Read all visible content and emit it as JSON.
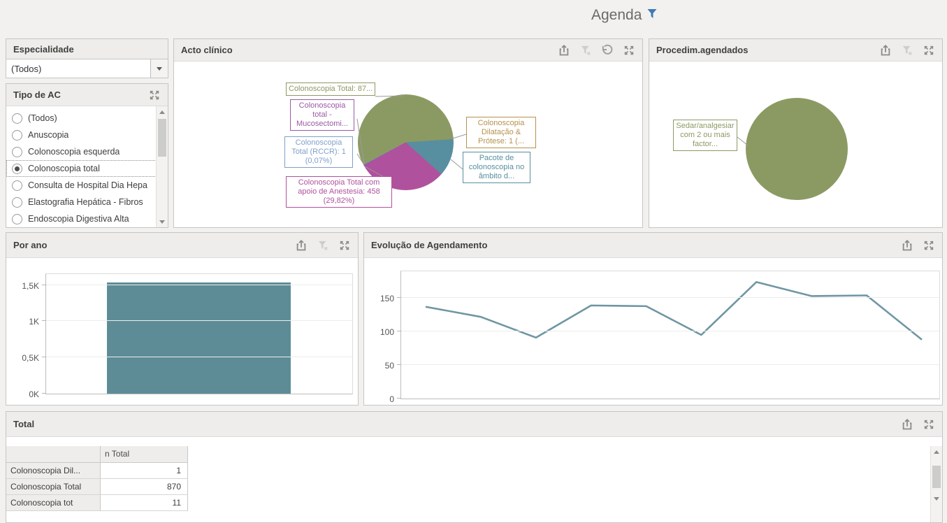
{
  "page": {
    "title": "Agenda"
  },
  "colors": {
    "accent_blue": "#3d7ab8",
    "pie_green": "#8b9a63",
    "pie_teal": "#578fa0",
    "pie_magenta": "#b0519d",
    "pie_tan": "#b5924c",
    "pie_purple": "#9b59a5",
    "pie_steel_blue": "#7f9fc9",
    "bar_teal": "#5e8c96",
    "line_teal": "#6f96a3"
  },
  "panels": {
    "especialidade": {
      "title": "Especialidade",
      "value": "(Todos)"
    },
    "tipo_ac": {
      "title": "Tipo de AC",
      "items": [
        {
          "label": "(Todos)",
          "selected": false
        },
        {
          "label": "Anuscopia",
          "selected": false
        },
        {
          "label": "Colonoscopia esquerda",
          "selected": false
        },
        {
          "label": "Colonoscopia total",
          "selected": true
        },
        {
          "label": "Consulta de Hospital Dia Hepa",
          "selected": false
        },
        {
          "label": "Elastografia Hepática - Fibros",
          "selected": false
        },
        {
          "label": "Endoscopia Digestiva Alta",
          "selected": false
        }
      ]
    },
    "acto": {
      "title": "Acto clínico"
    },
    "proc": {
      "title": "Procedim.agendados"
    },
    "porano": {
      "title": "Por ano"
    },
    "evolucao": {
      "title": "Evolução de Agendamento"
    },
    "total": {
      "title": "Total",
      "table": {
        "columns": [
          "",
          "n Total"
        ],
        "rows": [
          {
            "label": "Colonoscopia Dil...",
            "value": "1"
          },
          {
            "label": "Colonoscopia Total",
            "value": "870"
          },
          {
            "label": "Colonoscopia tot",
            "value": "11"
          }
        ]
      }
    }
  },
  "chart_data": [
    {
      "id": "acto_clinico_pie",
      "type": "pie",
      "title": "Acto clínico",
      "start_angle": 242,
      "slices": [
        {
          "label": "Colonoscopia Total: 87...",
          "value": 870,
          "pct": 56.64,
          "color": "#8b9a63"
        },
        {
          "label": "Colonoscopia Dilatação & Prótese: 1 (...",
          "value": 1,
          "pct": 0.07,
          "color": "#b5924c"
        },
        {
          "label": "Pacote de colonoscopia no âmbito d...",
          "value": 195,
          "pct": 12.7,
          "color": "#578fa0"
        },
        {
          "label": "Colonoscopia Total com apoio de Anestesia: 458 (29,82%)",
          "value": 458,
          "pct": 29.82,
          "color": "#b0519d"
        },
        {
          "label": "Colonoscopia total - Mucosectomi...",
          "value": 11,
          "pct": 0.72,
          "color": "#9b59a5"
        },
        {
          "label": "Colonoscopia Total (RCCR): 1 (0,07%)",
          "value": 1,
          "pct": 0.07,
          "color": "#7f9fc9"
        }
      ]
    },
    {
      "id": "procedim_agendados_pie",
      "type": "pie",
      "title": "Procedim.agendados",
      "start_angle": 0,
      "slices": [
        {
          "label": "Sedar/analgesiar com 2 ou mais factor...",
          "value": 1536,
          "pct": 100,
          "color": "#8b9a63"
        }
      ]
    },
    {
      "id": "por_ano_bar",
      "type": "bar",
      "title": "Por ano",
      "categories": [
        ""
      ],
      "values": [
        1536
      ],
      "ylim": [
        0,
        1650
      ],
      "yticks": [
        {
          "label": "0K",
          "v": 0
        },
        {
          "label": "0,5K",
          "v": 500
        },
        {
          "label": "1K",
          "v": 1000
        },
        {
          "label": "1,5K",
          "v": 1500
        }
      ],
      "bar_color": "#5e8c96",
      "grid": true,
      "legend": "none"
    },
    {
      "id": "evolucao_agendamento_line",
      "type": "line",
      "title": "Evolução de Agendamento",
      "values": [
        137,
        122,
        91,
        139,
        138,
        95,
        174,
        153,
        154,
        88
      ],
      "ylim": [
        0,
        190
      ],
      "yticks": [
        {
          "label": "0",
          "v": 0
        },
        {
          "label": "50",
          "v": 50
        },
        {
          "label": "100",
          "v": 100
        },
        {
          "label": "150",
          "v": 150
        }
      ],
      "line_color": "#6f96a3",
      "grid": true,
      "legend": "none"
    }
  ]
}
